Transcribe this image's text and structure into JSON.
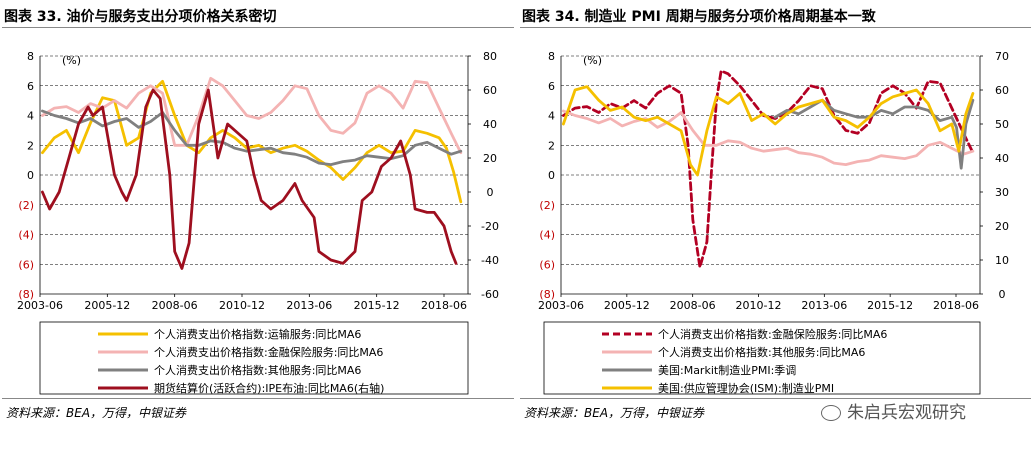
{
  "charts": [
    {
      "title": "图表 33. 油价与服务支出分项价格关系密切",
      "source": "资料来源：BEA，万得，中银证券",
      "colors": {
        "grey": "#808080",
        "pink": "#f4b3b3",
        "red": "#b30023",
        "neg_tick": "#c00000",
        "dark_red": "#9e0f1f",
        "yellow": "#f5c000"
      }
    },
    {
      "title": "图表 34. 制造业 PMI 周期与服务分项价格周期基本一致",
      "source": "资料来源：BEA，万得，中银证券",
      "watermark": "朱启兵宏观研究"
    }
  ],
  "chart_data": [
    {
      "type": "line",
      "x_tick_labels": [
        "2003-06",
        "2005-12",
        "2008-06",
        "2010-12",
        "2013-06",
        "2015-12",
        "2018-06"
      ],
      "x_range": [
        2003.4,
        2021.2
      ],
      "y_unit_label": "(%)",
      "y_left_range": [
        -8,
        8
      ],
      "y_left_tick_labels": [
        "(8)",
        "(6)",
        "(4)",
        "(2)",
        "0",
        "2",
        "4",
        "6",
        "8"
      ],
      "y_right_range": [
        -60,
        80
      ],
      "y_right_tick_labels": [
        "-60",
        "-40",
        "-20",
        "0",
        "20",
        "40",
        "60",
        "80"
      ],
      "grid": "horizontal dashed",
      "legend_position": "bottom",
      "series": [
        {
          "name": "个人消费支出价格指数:运输服务:同比MA6",
          "color": "#f5c000",
          "axis": "left",
          "style": "solid",
          "x": [
            2003.5,
            2004.0,
            2004.5,
            2005.0,
            2005.5,
            2006.0,
            2006.5,
            2007.0,
            2007.5,
            2008.0,
            2008.5,
            2009.0,
            2009.5,
            2010.0,
            2010.5,
            2011.0,
            2011.5,
            2012.0,
            2012.5,
            2013.0,
            2013.5,
            2014.0,
            2014.5,
            2015.0,
            2015.5,
            2016.0,
            2016.5,
            2017.0,
            2017.5,
            2018.0,
            2018.5,
            2019.0,
            2019.5,
            2020.0,
            2020.3,
            2020.6,
            2020.9
          ],
          "y": [
            1.5,
            2.5,
            3.0,
            1.5,
            3.5,
            5.2,
            5.0,
            2.0,
            2.5,
            5.5,
            6.3,
            4.0,
            2.0,
            1.5,
            2.5,
            3.0,
            2.5,
            1.8,
            2.0,
            1.5,
            1.8,
            2.0,
            1.6,
            1.0,
            0.5,
            -0.3,
            0.5,
            1.5,
            2.0,
            1.5,
            1.6,
            3.0,
            2.8,
            2.5,
            1.8,
            0.2,
            -1.8
          ]
        },
        {
          "name": "个人消费支出价格指数:金融保险服务:同比MA6",
          "color": "#f4b3b3",
          "axis": "left",
          "style": "solid",
          "x": [
            2003.5,
            2004.0,
            2004.5,
            2005.0,
            2005.5,
            2006.0,
            2006.5,
            2007.0,
            2007.5,
            2008.0,
            2008.5,
            2009.0,
            2009.5,
            2010.0,
            2010.5,
            2011.0,
            2011.5,
            2012.0,
            2012.5,
            2013.0,
            2013.5,
            2014.0,
            2014.5,
            2015.0,
            2015.5,
            2016.0,
            2016.5,
            2017.0,
            2017.5,
            2018.0,
            2018.5,
            2019.0,
            2019.5,
            2020.0,
            2020.5,
            2020.9
          ],
          "y": [
            4.0,
            4.5,
            4.6,
            4.2,
            4.8,
            4.5,
            5.0,
            4.5,
            5.5,
            6.0,
            5.5,
            2.0,
            2.0,
            4.0,
            6.5,
            6.0,
            5.0,
            4.0,
            3.8,
            4.2,
            5.0,
            6.0,
            5.8,
            4.0,
            3.0,
            2.8,
            3.5,
            5.5,
            6.0,
            5.5,
            4.5,
            6.3,
            6.2,
            4.5,
            2.8,
            1.5
          ]
        },
        {
          "name": "个人消费支出价格指数:其他服务:同比MA6",
          "color": "#808080",
          "axis": "left",
          "style": "solid",
          "x": [
            2003.5,
            2004.0,
            2004.5,
            2005.0,
            2005.5,
            2006.0,
            2006.5,
            2007.0,
            2007.5,
            2008.0,
            2008.5,
            2009.0,
            2009.5,
            2010.0,
            2010.5,
            2011.0,
            2011.5,
            2012.0,
            2012.5,
            2013.0,
            2013.5,
            2014.0,
            2014.5,
            2015.0,
            2015.5,
            2016.0,
            2016.5,
            2017.0,
            2017.5,
            2018.0,
            2018.5,
            2019.0,
            2019.5,
            2020.0,
            2020.5,
            2020.9
          ],
          "y": [
            4.3,
            4.0,
            3.8,
            3.5,
            3.8,
            3.3,
            3.6,
            3.8,
            3.2,
            3.6,
            4.2,
            3.0,
            2.0,
            2.0,
            2.3,
            2.2,
            1.8,
            1.6,
            1.7,
            1.8,
            1.5,
            1.4,
            1.2,
            0.8,
            0.7,
            0.9,
            1.0,
            1.3,
            1.2,
            1.1,
            1.3,
            2.0,
            2.2,
            1.8,
            1.4,
            1.6
          ]
        },
        {
          "name": "期货结算价(活跃合约):IPE布油:同比MA6(右轴)",
          "color": "#9e0f1f",
          "axis": "right",
          "style": "solid",
          "x": [
            2003.5,
            2003.8,
            2004.2,
            2004.6,
            2005.0,
            2005.4,
            2005.6,
            2006.0,
            2006.5,
            2006.8,
            2007.0,
            2007.4,
            2007.8,
            2008.1,
            2008.4,
            2008.8,
            2009.0,
            2009.3,
            2009.6,
            2010.0,
            2010.4,
            2010.8,
            2011.2,
            2011.6,
            2012.0,
            2012.3,
            2012.6,
            2013.0,
            2013.5,
            2014.0,
            2014.3,
            2014.8,
            2015.0,
            2015.5,
            2016.0,
            2016.5,
            2016.8,
            2017.2,
            2017.6,
            2018.0,
            2018.4,
            2018.8,
            2019.0,
            2019.5,
            2019.8,
            2020.2,
            2020.5,
            2020.7
          ],
          "y": [
            0,
            -10,
            0,
            20,
            40,
            50,
            45,
            50,
            10,
            0,
            -5,
            10,
            50,
            60,
            55,
            10,
            -35,
            -45,
            -30,
            40,
            60,
            20,
            40,
            35,
            30,
            10,
            -5,
            -10,
            -5,
            5,
            -5,
            -15,
            -35,
            -40,
            -42,
            -35,
            -5,
            0,
            15,
            20,
            30,
            10,
            -10,
            -12,
            -12,
            -20,
            -35,
            -42
          ]
        }
      ]
    },
    {
      "type": "line",
      "x_tick_labels": [
        "2003-06",
        "2005-12",
        "2008-06",
        "2010-12",
        "2013-06",
        "2015-12",
        "2018-06"
      ],
      "x_range": [
        2003.4,
        2021.2
      ],
      "y_unit_label": "(%)",
      "y_left_range": [
        -8,
        8
      ],
      "y_left_tick_labels": [
        "(8)",
        "(6)",
        "(4)",
        "(2)",
        "0",
        "2",
        "4",
        "6",
        "8"
      ],
      "y_right_range": [
        0,
        70
      ],
      "y_right_tick_labels": [
        "0",
        "10",
        "20",
        "30",
        "40",
        "50",
        "60",
        "70"
      ],
      "grid": "horizontal dashed",
      "legend_position": "bottom",
      "series": [
        {
          "name": "个人消费支出价格指数:金融保险服务:同比MA6",
          "color": "#b30023",
          "axis": "left",
          "style": "dashed",
          "x": [
            2003.5,
            2004.0,
            2004.5,
            2005.0,
            2005.5,
            2006.0,
            2006.5,
            2007.0,
            2007.5,
            2008.0,
            2008.5,
            2008.8,
            2009.0,
            2009.3,
            2009.6,
            2009.8,
            2010.0,
            2010.2,
            2010.5,
            2011.0,
            2011.5,
            2012.0,
            2012.5,
            2013.0,
            2013.5,
            2014.0,
            2014.5,
            2015.0,
            2015.5,
            2016.0,
            2016.5,
            2017.0,
            2017.5,
            2018.0,
            2018.5,
            2019.0,
            2019.5,
            2020.0,
            2020.5,
            2020.9
          ],
          "y": [
            4.0,
            4.5,
            4.6,
            4.2,
            4.8,
            4.5,
            5.0,
            4.5,
            5.5,
            6.0,
            5.5,
            2.0,
            -3.0,
            -6.2,
            -4.5,
            0.5,
            5.0,
            7.0,
            6.8,
            6.0,
            5.0,
            4.0,
            3.8,
            4.2,
            5.0,
            6.0,
            5.8,
            4.0,
            3.0,
            2.8,
            3.5,
            5.5,
            6.0,
            5.5,
            4.5,
            6.3,
            6.2,
            4.5,
            2.8,
            1.5
          ]
        },
        {
          "name": "个人消费支出价格指数:其他服务:同比MA6",
          "color": "#f4b3b3",
          "axis": "left",
          "style": "solid",
          "x": [
            2003.5,
            2004.0,
            2004.5,
            2005.0,
            2005.5,
            2006.0,
            2006.5,
            2007.0,
            2007.5,
            2008.0,
            2008.5,
            2009.0,
            2009.5,
            2010.0,
            2010.5,
            2011.0,
            2011.5,
            2012.0,
            2012.5,
            2013.0,
            2013.5,
            2014.0,
            2014.5,
            2015.0,
            2015.5,
            2016.0,
            2016.5,
            2017.0,
            2017.5,
            2018.0,
            2018.5,
            2019.0,
            2019.5,
            2020.0,
            2020.5,
            2020.9
          ],
          "y": [
            4.3,
            4.0,
            3.8,
            3.5,
            3.8,
            3.3,
            3.6,
            3.8,
            3.2,
            3.6,
            4.2,
            3.0,
            2.0,
            2.0,
            2.3,
            2.2,
            1.8,
            1.6,
            1.7,
            1.8,
            1.5,
            1.4,
            1.2,
            0.8,
            0.7,
            0.9,
            1.0,
            1.3,
            1.2,
            1.1,
            1.3,
            2.0,
            2.2,
            1.8,
            1.4,
            1.6
          ]
        },
        {
          "name": "美国:Markit制造业PMI:季调",
          "color": "#808080",
          "axis": "right",
          "style": "solid",
          "x": [
            2012.5,
            2013.0,
            2013.5,
            2014.0,
            2014.5,
            2015.0,
            2015.5,
            2016.0,
            2016.5,
            2017.0,
            2017.5,
            2018.0,
            2018.5,
            2019.0,
            2019.5,
            2020.0,
            2020.2,
            2020.4,
            2020.6,
            2020.9
          ],
          "y": [
            52,
            54,
            53,
            55,
            57,
            54,
            53,
            52,
            52,
            54,
            53,
            55,
            55,
            54,
            51,
            52,
            49,
            37,
            50,
            57
          ]
        },
        {
          "name": "美国:供应管理协会(ISM):制造业PMI",
          "color": "#f5c000",
          "axis": "right",
          "style": "solid",
          "x": [
            2003.5,
            2004.0,
            2004.5,
            2005.0,
            2005.5,
            2006.0,
            2006.5,
            2007.0,
            2007.5,
            2008.0,
            2008.5,
            2008.9,
            2009.2,
            2009.6,
            2010.0,
            2010.5,
            2011.0,
            2011.5,
            2012.0,
            2012.5,
            2013.0,
            2013.5,
            2014.0,
            2014.5,
            2015.0,
            2015.5,
            2016.0,
            2016.5,
            2017.0,
            2017.5,
            2018.0,
            2018.5,
            2019.0,
            2019.5,
            2020.0,
            2020.3,
            2020.6,
            2020.9
          ],
          "y": [
            50,
            60,
            61,
            57,
            54,
            55,
            52,
            51,
            52,
            50,
            48,
            38,
            35,
            48,
            58,
            56,
            59,
            51,
            53,
            50,
            53,
            55,
            56,
            57,
            52,
            51,
            49,
            52,
            56,
            58,
            59,
            60,
            56,
            48,
            50,
            42,
            53,
            59
          ]
        }
      ]
    }
  ]
}
